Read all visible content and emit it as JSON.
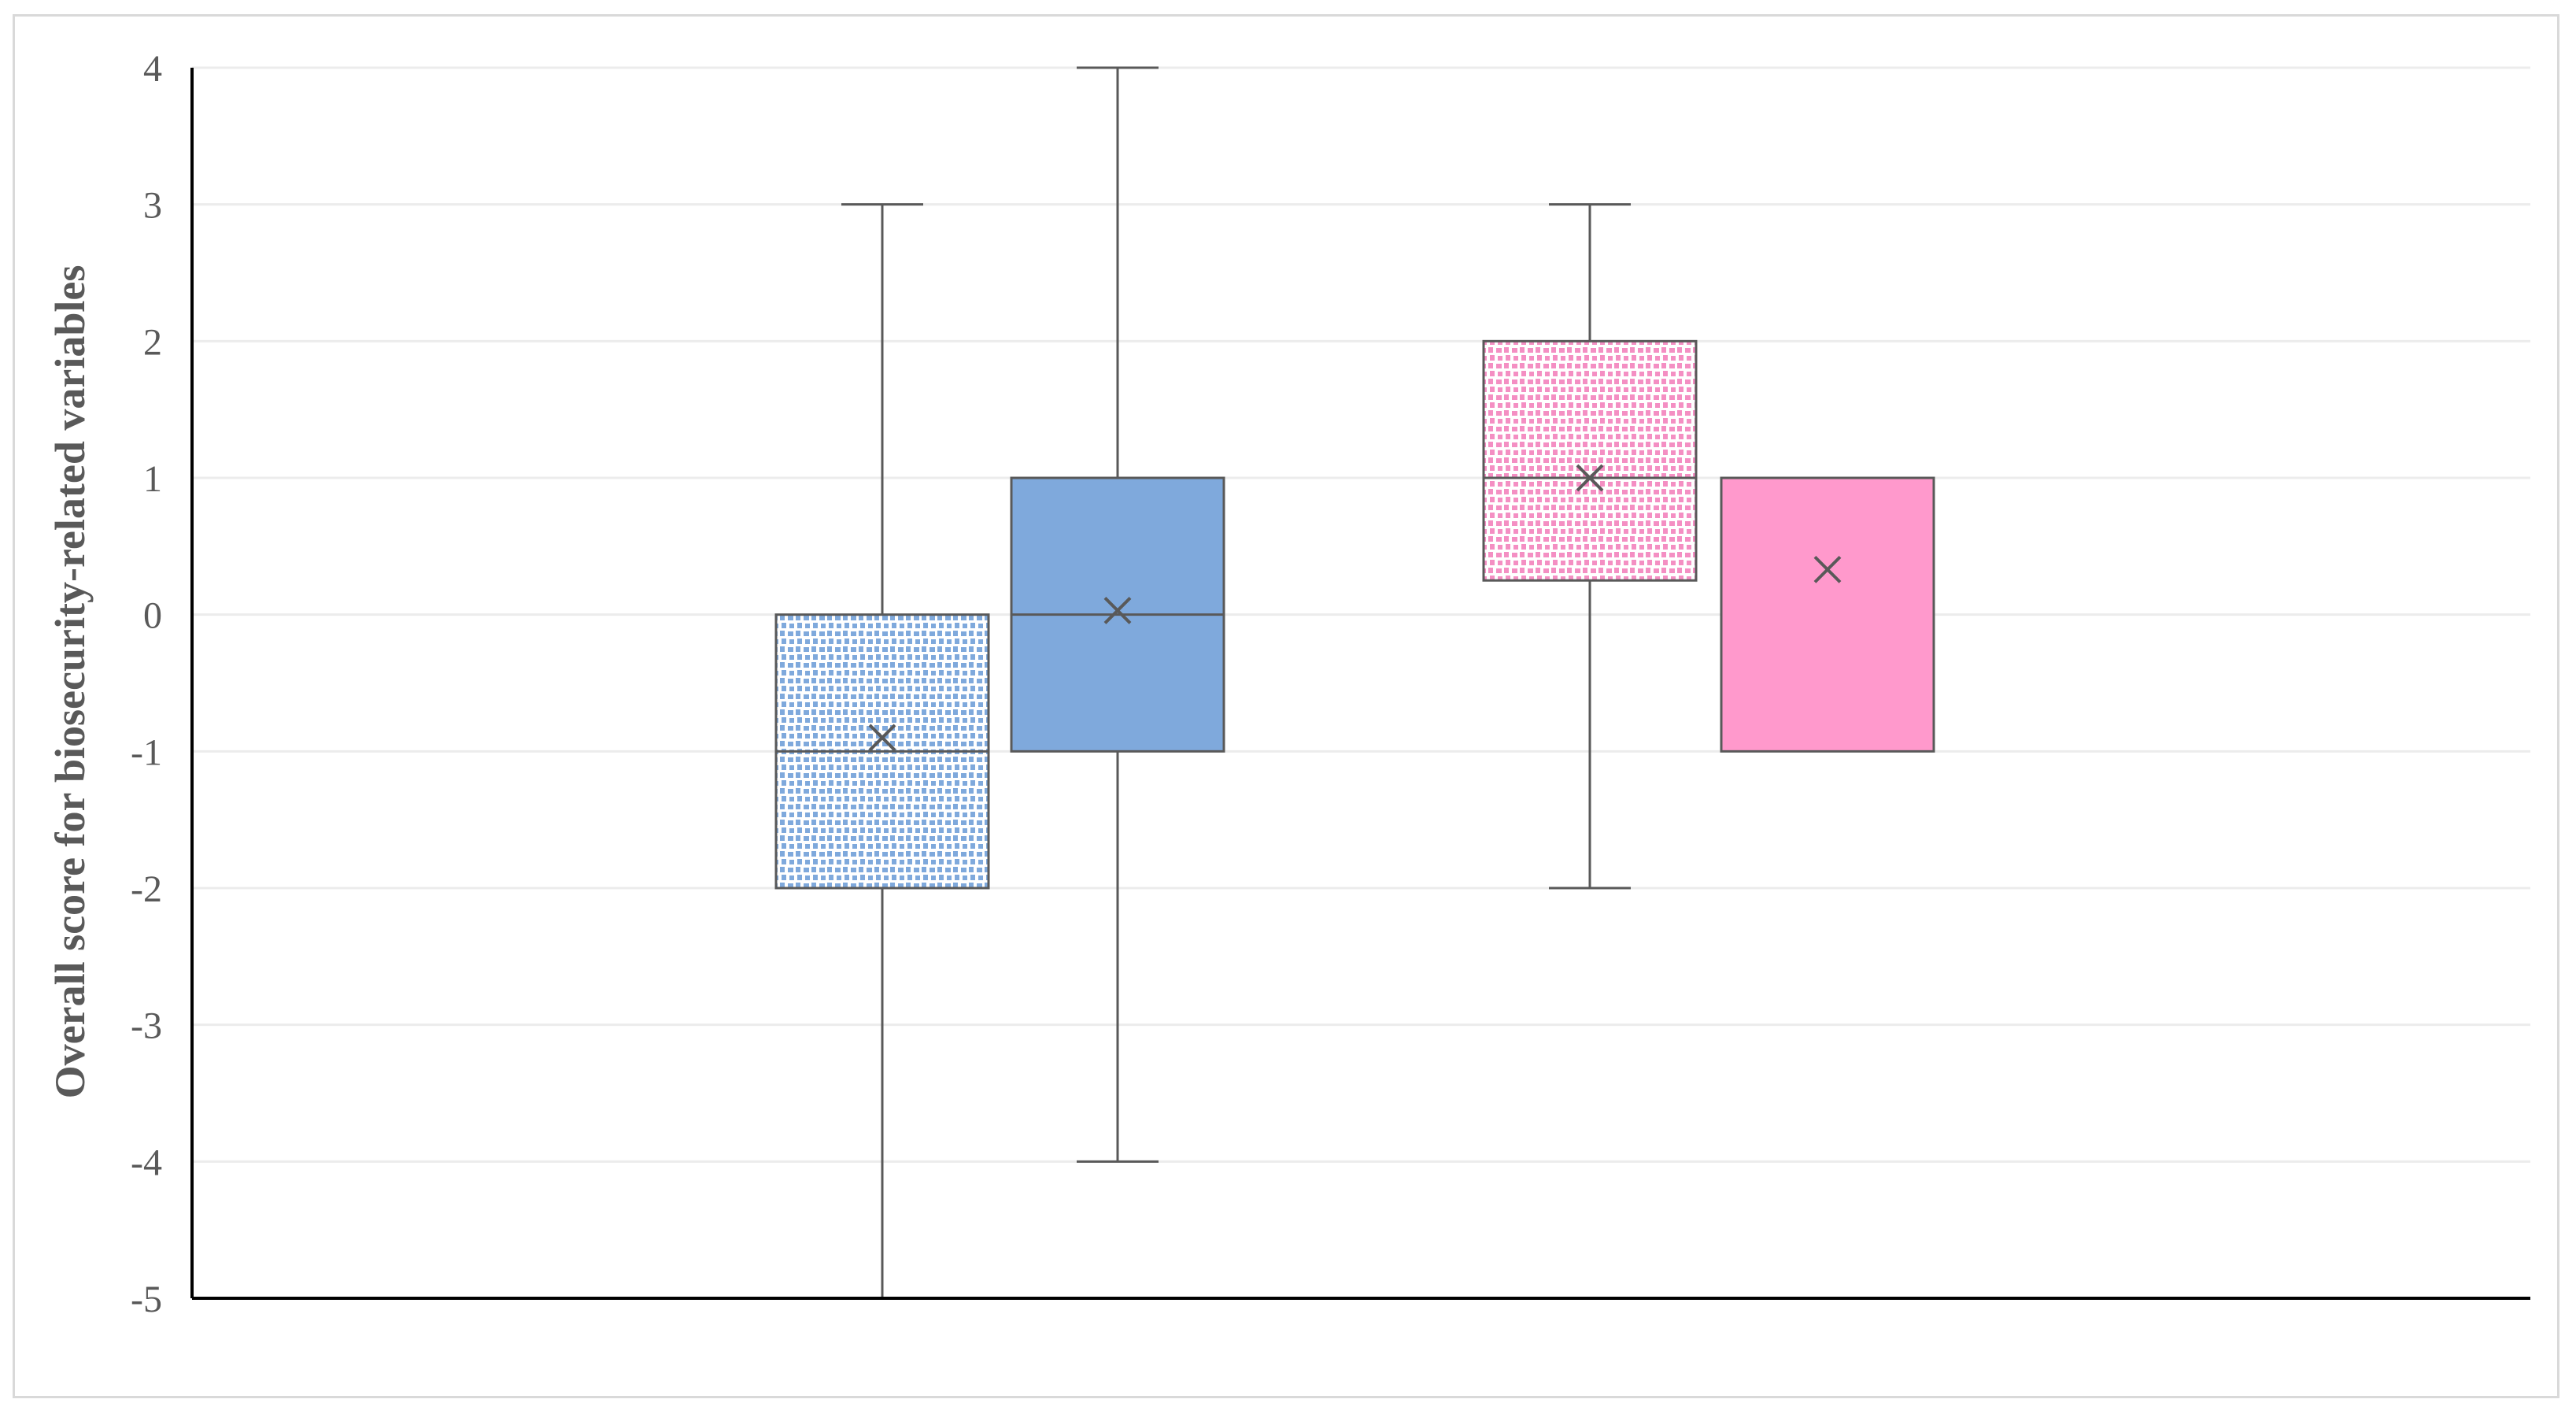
{
  "chart_data": {
    "type": "boxplot",
    "title": "",
    "xlabel": "",
    "ylabel": "Overall score for biosecurity-related variables",
    "ylim": [
      -5,
      4
    ],
    "yticks": [
      4,
      3,
      2,
      1,
      0,
      -1,
      -2,
      -3,
      -4,
      -5
    ],
    "grid": true,
    "legend": "none",
    "series": [
      {
        "color": "#7fa9dc",
        "pattern": "dotted",
        "min": -5,
        "q1": -2,
        "median": -1,
        "q3": 0,
        "max": 3,
        "mean": -0.9
      },
      {
        "color": "#7fa9dc",
        "pattern": "solid",
        "min": -4,
        "q1": -1,
        "median": 0,
        "q3": 1,
        "max": 4,
        "mean": 0.03
      },
      {
        "color": "#f48fc3",
        "pattern": "dotted",
        "min": -2,
        "q1": 0.25,
        "median": 1,
        "q3": 2,
        "max": 3,
        "mean": 1.0
      },
      {
        "color": "#ff99cc",
        "pattern": "solid",
        "min": -1,
        "q1": -1,
        "median": 1,
        "q3": 1,
        "max": 1,
        "mean": 0.33
      }
    ],
    "colors": {
      "box_outline": "#595959",
      "gridline": "#ececec",
      "axis": "#000000"
    }
  }
}
